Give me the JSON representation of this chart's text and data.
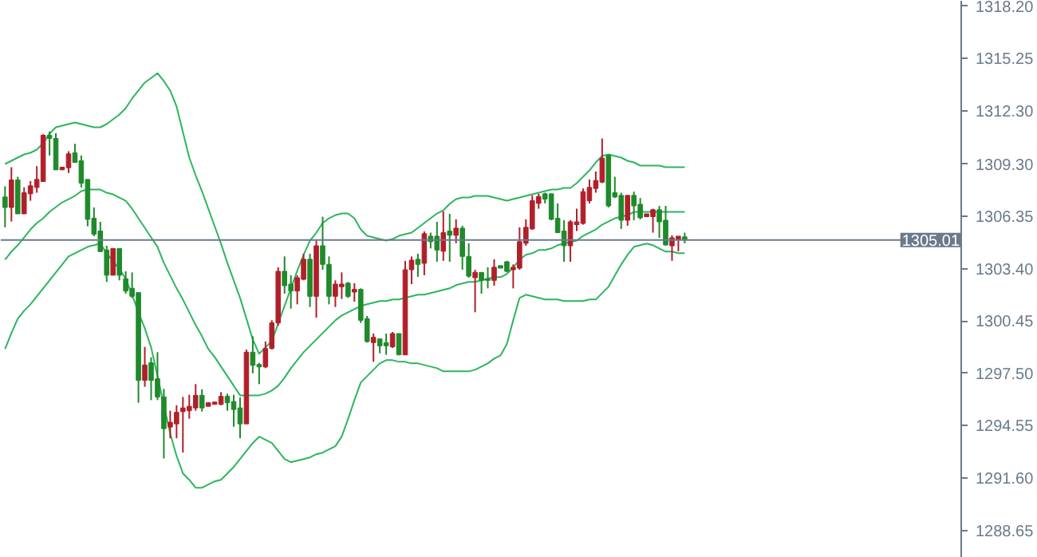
{
  "chart_data": {
    "type": "candlestick",
    "categories": [
      null,
      null,
      null,
      null,
      null,
      null,
      null,
      null,
      null,
      null,
      null,
      null,
      null,
      null,
      null,
      null,
      null,
      null,
      null,
      null,
      null,
      null,
      null,
      null,
      null,
      null,
      null,
      null,
      null,
      null,
      null,
      null,
      null,
      null,
      null,
      null,
      null,
      null,
      null,
      null,
      null,
      null,
      null,
      null,
      null,
      null,
      null,
      null,
      null,
      null,
      null,
      null,
      null,
      null,
      null,
      null,
      null,
      null,
      null,
      null,
      null,
      null,
      null,
      null,
      null,
      null,
      null,
      null,
      null,
      null,
      null,
      null,
      null,
      null,
      null,
      null,
      null,
      null,
      null,
      null,
      null,
      null,
      null,
      null,
      null,
      null,
      null,
      null,
      null,
      null,
      null,
      null,
      null,
      null,
      null,
      null,
      null,
      null,
      null,
      null,
      null,
      null,
      null,
      null,
      null,
      null,
      null,
      null
    ],
    "ohlc": [
      [
        1307.44,
        1308.04,
        1305.73,
        1306.85
      ],
      [
        1306.85,
        1309.12,
        1306.06,
        1308.4
      ],
      [
        1308.4,
        1308.58,
        1306.49,
        1306.49
      ],
      [
        1306.49,
        1307.98,
        1306.49,
        1307.68
      ],
      [
        1307.62,
        1308.34,
        1307.23,
        1308.07
      ],
      [
        1307.98,
        1309.18,
        1307.68,
        1308.43
      ],
      [
        1308.31,
        1310.98,
        1308.31,
        1310.92
      ],
      [
        1310.92,
        1311.13,
        1309.78,
        1310.74
      ],
      [
        1310.74,
        1311.04,
        1308.97,
        1308.97
      ],
      [
        1308.97,
        1309.12,
        1308.97,
        1309.12
      ],
      [
        1309.09,
        1310.02,
        1308.79,
        1309.87
      ],
      [
        1309.93,
        1310.44,
        1309.39,
        1309.39
      ],
      [
        1309.48,
        1309.78,
        1307.98,
        1308.22
      ],
      [
        1308.43,
        1308.43,
        1305.79,
        1306.18
      ],
      [
        1306.24,
        1306.85,
        1305.23,
        1305.34
      ],
      [
        1305.52,
        1306.04,
        1304.36,
        1304.36
      ],
      [
        1304.45,
        1304.69,
        1302.65,
        1303.03
      ],
      [
        1303.03,
        1304.54,
        1303.03,
        1304.54
      ],
      [
        1304.54,
        1304.54,
        1302.74,
        1303.03
      ],
      [
        1302.83,
        1303.25,
        1301.99,
        1302.14
      ],
      [
        1302.29,
        1303.19,
        1301.75,
        1301.84
      ],
      [
        1302.05,
        1302.05,
        1295.84,
        1297.1
      ],
      [
        1297.1,
        1298.99,
        1296.74,
        1297.97
      ],
      [
        1298.09,
        1298.4,
        1295.99,
        1297.1
      ],
      [
        1297.19,
        1298.69,
        1295.99,
        1296.17
      ],
      [
        1296.17,
        1296.62,
        1292.7,
        1294.38
      ],
      [
        1294.47,
        1295.39,
        1293.84,
        1294.74
      ],
      [
        1294.65,
        1295.7,
        1293.84,
        1295.3
      ],
      [
        1295.34,
        1296.17,
        1293.03,
        1295.55
      ],
      [
        1295.39,
        1296.29,
        1294.94,
        1295.64
      ],
      [
        1295.55,
        1296.89,
        1295.39,
        1296.26
      ],
      [
        1296.26,
        1296.6,
        1295.34,
        1295.55
      ],
      [
        1295.64,
        1295.84,
        1295.64,
        1295.84
      ],
      [
        1295.75,
        1295.88,
        1295.75,
        1295.88
      ],
      [
        1295.75,
        1296.44,
        1295.7,
        1296.2
      ],
      [
        1296.2,
        1296.35,
        1295.39,
        1295.84
      ],
      [
        1295.91,
        1296.29,
        1294.49,
        1295.46
      ],
      [
        1295.55,
        1296.14,
        1293.84,
        1294.65
      ],
      [
        1294.65,
        1298.84,
        1294.65,
        1298.69
      ],
      [
        1298.69,
        1299.59,
        1297.5,
        1297.95
      ],
      [
        1298.0,
        1298.09,
        1296.89,
        1297.86
      ],
      [
        1297.86,
        1299.29,
        1297.79,
        1298.9
      ],
      [
        1298.9,
        1300.49,
        1298.84,
        1300.34
      ],
      [
        1300.34,
        1303.48,
        1300.19,
        1303.25
      ],
      [
        1303.25,
        1304.09,
        1301.99,
        1302.44
      ],
      [
        1302.53,
        1303.03,
        1301.15,
        1302.14
      ],
      [
        1302.14,
        1303.03,
        1301.39,
        1302.89
      ],
      [
        1302.8,
        1304.24,
        1302.74,
        1303.93
      ],
      [
        1303.93,
        1304.24,
        1301.24,
        1301.84
      ],
      [
        1301.84,
        1304.99,
        1300.64,
        1304.69
      ],
      [
        1304.69,
        1306.33,
        1303.34,
        1303.64
      ],
      [
        1303.64,
        1304.09,
        1301.39,
        1301.84
      ],
      [
        1301.84,
        1302.74,
        1301.24,
        1302.53
      ],
      [
        1302.38,
        1303.19,
        1301.69,
        1302.53
      ],
      [
        1302.58,
        1302.65,
        1301.75,
        1301.84
      ],
      [
        1302.08,
        1302.58,
        1301.54,
        1302.23
      ],
      [
        1302.23,
        1302.29,
        1300.34,
        1300.49
      ],
      [
        1300.58,
        1300.73,
        1299.23,
        1299.29
      ],
      [
        1299.23,
        1299.74,
        1298.15,
        1299.53
      ],
      [
        1299.44,
        1299.44,
        1298.63,
        1299.05
      ],
      [
        1299.23,
        1299.74,
        1298.54,
        1299.05
      ],
      [
        1298.99,
        1299.83,
        1298.93,
        1299.74
      ],
      [
        1299.74,
        1299.74,
        1298.54,
        1298.54
      ],
      [
        1298.54,
        1303.84,
        1298.54,
        1303.34
      ],
      [
        1303.34,
        1304.09,
        1302.53,
        1303.88
      ],
      [
        1303.93,
        1304.24,
        1302.94,
        1303.64
      ],
      [
        1303.7,
        1305.5,
        1303.03,
        1305.37
      ],
      [
        1305.23,
        1305.43,
        1304.54,
        1304.92
      ],
      [
        1305.23,
        1306.04,
        1303.79,
        1304.45
      ],
      [
        1304.38,
        1306.63,
        1303.84,
        1305.43
      ],
      [
        1305.52,
        1306.49,
        1303.79,
        1305.28
      ],
      [
        1305.28,
        1306.18,
        1304.83,
        1305.68
      ],
      [
        1305.68,
        1305.82,
        1303.34,
        1304.09
      ],
      [
        1304.09,
        1304.83,
        1302.89,
        1302.98
      ],
      [
        1302.89,
        1303.34,
        1300.94,
        1303.19
      ],
      [
        1303.19,
        1303.19,
        1301.99,
        1302.74
      ],
      [
        1302.83,
        1303.48,
        1302.29,
        1302.74
      ],
      [
        1302.74,
        1303.93,
        1302.44,
        1303.48
      ],
      [
        1303.57,
        1303.57,
        1303.43,
        1303.43
      ],
      [
        1303.79,
        1303.84,
        1303.19,
        1303.25
      ],
      [
        1303.34,
        1303.64,
        1302.29,
        1303.48
      ],
      [
        1303.43,
        1305.73,
        1303.34,
        1304.92
      ],
      [
        1304.83,
        1306.18,
        1304.69,
        1305.73
      ],
      [
        1305.64,
        1307.53,
        1305.59,
        1307.23
      ],
      [
        1307.08,
        1307.62,
        1306.78,
        1307.47
      ],
      [
        1307.62,
        1307.68,
        1307.08,
        1307.32
      ],
      [
        1307.62,
        1307.62,
        1306.13,
        1306.18
      ],
      [
        1306.24,
        1307.08,
        1305.43,
        1305.43
      ],
      [
        1305.52,
        1306.13,
        1303.79,
        1304.69
      ],
      [
        1304.69,
        1306.13,
        1303.79,
        1306.04
      ],
      [
        1305.88,
        1306.78,
        1305.52,
        1306.04
      ],
      [
        1305.95,
        1307.92,
        1305.88,
        1307.74
      ],
      [
        1307.23,
        1308.43,
        1307.08,
        1307.98
      ],
      [
        1307.92,
        1308.88,
        1307.68,
        1308.37
      ],
      [
        1308.28,
        1310.74,
        1308.22,
        1309.63
      ],
      [
        1309.78,
        1309.84,
        1306.85,
        1306.94
      ],
      [
        1307.68,
        1308.58,
        1307.38,
        1307.44
      ],
      [
        1307.53,
        1307.68,
        1305.64,
        1306.13
      ],
      [
        1306.13,
        1307.53,
        1305.82,
        1307.53
      ],
      [
        1307.53,
        1307.74,
        1306.13,
        1306.94
      ],
      [
        1307.03,
        1307.38,
        1306.18,
        1306.27
      ],
      [
        1306.33,
        1306.49,
        1306.33,
        1306.49
      ],
      [
        1306.33,
        1306.78,
        1305.43,
        1306.72
      ],
      [
        1306.72,
        1306.94,
        1305.14,
        1306.04
      ],
      [
        1306.13,
        1306.94,
        1304.69,
        1304.74
      ],
      [
        1304.69,
        1305.28,
        1303.84,
        1305.14
      ],
      [
        1305.05,
        1305.23,
        1304.38,
        1305.23
      ],
      [
        1305.19,
        1305.43,
        1304.83,
        1305.01
      ]
    ],
    "colors": [
      "#1f8a2b",
      "#b0202a",
      "#1f8a2b",
      "#b0202a",
      "#b0202a",
      "#b0202a",
      "#b0202a",
      "#1f8a2b",
      "#1f8a2b",
      "#b0202a",
      "#b0202a",
      "#1f8a2b",
      "#1f8a2b",
      "#1f8a2b",
      "#1f8a2b",
      "#1f8a2b",
      "#1f8a2b",
      "#b0202a",
      "#1f8a2b",
      "#1f8a2b",
      "#1f8a2b",
      "#1f8a2b",
      "#b0202a",
      "#1f8a2b",
      "#1f8a2b",
      "#1f8a2b",
      "#b0202a",
      "#b0202a",
      "#b0202a",
      "#b0202a",
      "#b0202a",
      "#1f8a2b",
      "#b0202a",
      "#b0202a",
      "#b0202a",
      "#1f8a2b",
      "#1f8a2b",
      "#1f8a2b",
      "#b0202a",
      "#1f8a2b",
      "#1f8a2b",
      "#b0202a",
      "#b0202a",
      "#b0202a",
      "#1f8a2b",
      "#1f8a2b",
      "#b0202a",
      "#b0202a",
      "#1f8a2b",
      "#b0202a",
      "#1f8a2b",
      "#1f8a2b",
      "#b0202a",
      "#b0202a",
      "#1f8a2b",
      "#b0202a",
      "#1f8a2b",
      "#1f8a2b",
      "#b0202a",
      "#1f8a2b",
      "#1f8a2b",
      "#b0202a",
      "#1f8a2b",
      "#b0202a",
      "#b0202a",
      "#1f8a2b",
      "#b0202a",
      "#1f8a2b",
      "#1f8a2b",
      "#b0202a",
      "#1f8a2b",
      "#b0202a",
      "#1f8a2b",
      "#1f8a2b",
      "#b0202a",
      "#1f8a2b",
      "#1f8a2b",
      "#b0202a",
      "#1f8a2b",
      "#1f8a2b",
      "#b0202a",
      "#b0202a",
      "#b0202a",
      "#b0202a",
      "#b0202a",
      "#1f8a2b",
      "#1f8a2b",
      "#1f8a2b",
      "#1f8a2b",
      "#b0202a",
      "#b0202a",
      "#b0202a",
      "#b0202a",
      "#b0202a",
      "#b0202a",
      "#1f8a2b",
      "#1f8a2b",
      "#1f8a2b",
      "#b0202a",
      "#1f8a2b",
      "#1f8a2b",
      "#b0202a",
      "#b0202a",
      "#1f8a2b",
      "#1f8a2b",
      "#b0202a",
      "#b0202a",
      "#1f8a2b"
    ],
    "series": [
      {
        "type": "line",
        "color": "#2db55d",
        "values": [
          1309.3,
          1309.48,
          1309.66,
          1309.84,
          1309.93,
          1310.11,
          1310.47,
          1311.01,
          1311.37,
          1311.46,
          1311.55,
          1311.64,
          1311.55,
          1311.46,
          1311.37,
          1311.37,
          1311.55,
          1311.82,
          1312.09,
          1312.45,
          1312.99,
          1313.44,
          1313.89,
          1314.15,
          1314.42,
          1313.97,
          1313.44,
          1312.54,
          1311.1,
          1309.66,
          1308.67,
          1307.77,
          1306.78,
          1305.79,
          1304.81,
          1303.73,
          1302.74,
          1301.75,
          1300.58,
          1299.41,
          1298.6,
          1298.96,
          1299.32,
          1300.31,
          1301.3,
          1302.29,
          1303.28,
          1304.18,
          1304.98,
          1305.43,
          1305.97,
          1306.24,
          1306.42,
          1306.51,
          1306.51,
          1306.24,
          1305.61,
          1305.25,
          1305.16,
          1305.07,
          1304.98,
          1305.07,
          1305.25,
          1305.34,
          1305.43,
          1305.7,
          1305.97,
          1306.24,
          1306.51,
          1306.69,
          1307.05,
          1307.32,
          1307.41,
          1307.41,
          1307.5,
          1307.5,
          1307.5,
          1307.41,
          1307.32,
          1307.23,
          1307.32,
          1307.41,
          1307.5,
          1307.59,
          1307.68,
          1307.77,
          1307.86,
          1307.86,
          1307.95,
          1307.95,
          1308.22,
          1308.58,
          1308.94,
          1309.39,
          1309.75,
          1309.84,
          1309.75,
          1309.66,
          1309.48,
          1309.39,
          1309.21,
          1309.21,
          1309.21,
          1309.21,
          1309.12,
          1309.12,
          1309.12,
          1309.12
        ]
      },
      {
        "type": "line",
        "color": "#2db55d",
        "values": [
          1303.91,
          1304.36,
          1304.72,
          1305.16,
          1305.61,
          1305.97,
          1306.24,
          1306.6,
          1306.87,
          1307.14,
          1307.32,
          1307.5,
          1307.77,
          1307.86,
          1307.86,
          1307.86,
          1307.68,
          1307.59,
          1307.41,
          1307.23,
          1306.78,
          1306.24,
          1305.7,
          1305.16,
          1304.63,
          1303.73,
          1303.01,
          1302.29,
          1301.66,
          1300.94,
          1300.22,
          1299.59,
          1298.87,
          1298.42,
          1297.88,
          1297.34,
          1296.8,
          1296.26,
          1296.26,
          1296.26,
          1296.26,
          1296.35,
          1296.53,
          1296.8,
          1297.25,
          1297.79,
          1298.24,
          1298.69,
          1299.05,
          1299.41,
          1299.77,
          1300.13,
          1300.49,
          1300.76,
          1300.94,
          1301.12,
          1301.3,
          1301.39,
          1301.48,
          1301.57,
          1301.57,
          1301.66,
          1301.66,
          1301.75,
          1301.84,
          1301.93,
          1301.93,
          1302.02,
          1302.11,
          1302.2,
          1302.29,
          1302.47,
          1302.56,
          1302.65,
          1302.65,
          1302.74,
          1302.83,
          1302.92,
          1302.92,
          1303.1,
          1303.46,
          1303.91,
          1304.18,
          1304.27,
          1304.45,
          1304.45,
          1304.54,
          1304.72,
          1304.81,
          1304.9,
          1304.98,
          1305.25,
          1305.43,
          1305.61,
          1305.88,
          1306.06,
          1306.24,
          1306.33,
          1306.42,
          1306.6,
          1306.6,
          1306.6,
          1306.6,
          1306.6,
          1306.6,
          1306.6,
          1306.6,
          1306.6
        ]
      },
      {
        "type": "line",
        "color": "#2db55d",
        "values": [
          1298.87,
          1299.77,
          1300.58,
          1301.03,
          1301.39,
          1301.84,
          1302.29,
          1302.74,
          1303.19,
          1303.64,
          1304.09,
          1304.27,
          1304.45,
          1304.63,
          1304.72,
          1304.81,
          1304.27,
          1303.82,
          1303.37,
          1302.83,
          1301.93,
          1300.94,
          1300.04,
          1298.96,
          1297.34,
          1295.73,
          1294.11,
          1292.85,
          1291.86,
          1291.5,
          1291.05,
          1291.05,
          1291.23,
          1291.41,
          1291.5,
          1291.86,
          1292.22,
          1292.67,
          1293.12,
          1293.57,
          1293.93,
          1293.75,
          1293.57,
          1293.12,
          1292.67,
          1292.49,
          1292.58,
          1292.67,
          1292.76,
          1292.94,
          1293.03,
          1293.21,
          1293.39,
          1293.93,
          1294.92,
          1295.99,
          1296.98,
          1297.34,
          1297.7,
          1298.06,
          1298.24,
          1298.24,
          1298.15,
          1298.15,
          1298.06,
          1298.06,
          1297.97,
          1297.88,
          1297.79,
          1297.61,
          1297.61,
          1297.61,
          1297.61,
          1297.61,
          1297.7,
          1297.88,
          1298.06,
          1298.33,
          1298.51,
          1299.14,
          1300.49,
          1301.75,
          1301.93,
          1301.84,
          1301.75,
          1301.66,
          1301.66,
          1301.66,
          1301.57,
          1301.57,
          1301.57,
          1301.57,
          1301.66,
          1301.66,
          1302.02,
          1302.38,
          1303.01,
          1303.64,
          1304.18,
          1304.63,
          1304.72,
          1304.81,
          1304.72,
          1304.54,
          1304.36,
          1304.36,
          1304.27,
          1304.27
        ]
      }
    ],
    "ylim": [
      1287.1,
      1318.5
    ],
    "yticks": [
      {
        "value": 1288.65,
        "label": "1288.65"
      },
      {
        "value": 1291.6,
        "label": "1291.60"
      },
      {
        "value": 1294.55,
        "label": "1294.55"
      },
      {
        "value": 1297.5,
        "label": "1297.50"
      },
      {
        "value": 1300.45,
        "label": "1300.45"
      },
      {
        "value": 1303.4,
        "label": "1303.40"
      },
      {
        "value": 1306.35,
        "label": "1306.35"
      },
      {
        "value": 1309.3,
        "label": "1309.30"
      },
      {
        "value": 1312.3,
        "label": "1312.30"
      },
      {
        "value": 1315.25,
        "label": "1315.25"
      },
      {
        "value": 1318.2,
        "label": "1318.20"
      }
    ],
    "ref_lines": [
      {
        "axis": "y",
        "value": 1305.01,
        "label": "1305.01",
        "color": "#6a7a8c"
      }
    ],
    "tick_labels": "y",
    "grid": false,
    "line_style": "solid"
  }
}
